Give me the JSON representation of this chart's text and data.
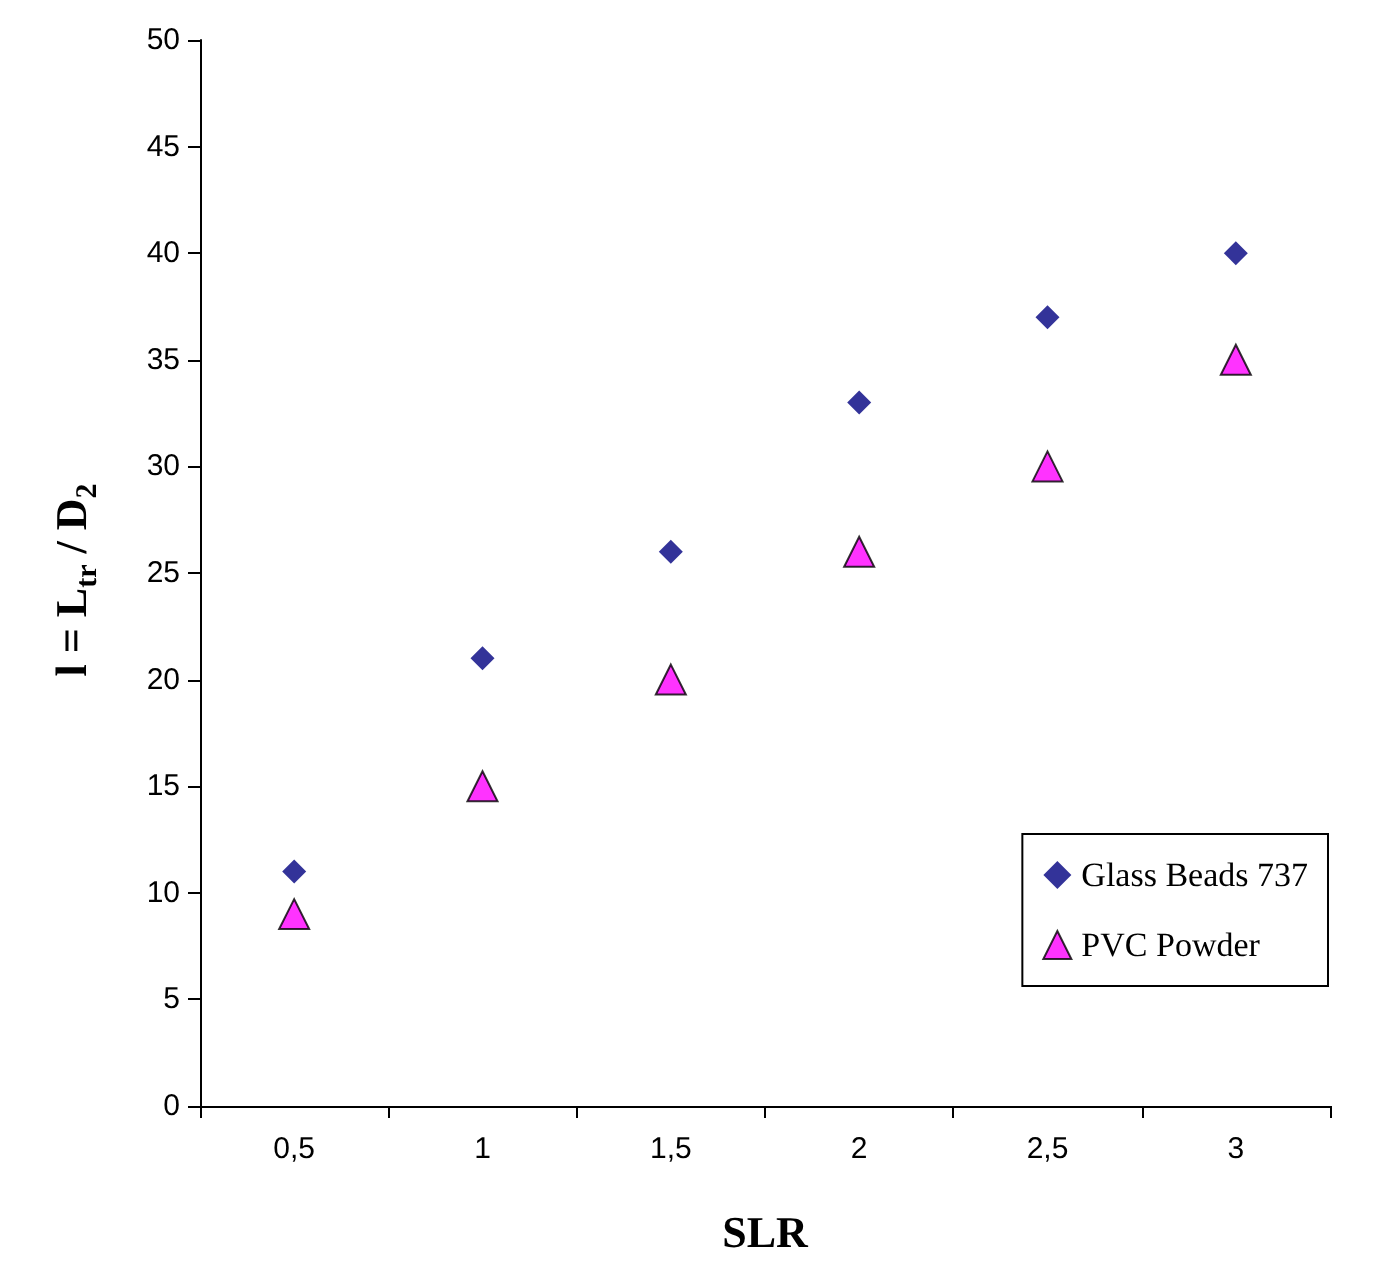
{
  "chart_data": {
    "type": "scatter",
    "xlabel": "SLR",
    "ylabel": "l = L$_{tr}$ / D$_{2}$",
    "categories": [
      "0,5",
      "1",
      "1,5",
      "2",
      "2,5",
      "3"
    ],
    "series": [
      {
        "name": "Glass Beads 737",
        "color": "#000080",
        "marker": "diamond",
        "values": [
          11,
          21,
          26,
          33,
          37,
          40
        ]
      },
      {
        "name": "PVC Powder",
        "color": "#ff00ff",
        "marker": "triangle",
        "values": [
          9,
          15,
          20,
          26,
          30,
          35
        ]
      }
    ],
    "ylim": [
      0,
      50
    ],
    "yticks": [
      0,
      5,
      10,
      15,
      20,
      25,
      30,
      35,
      40,
      45,
      50
    ],
    "grid": false,
    "legend": "bottom right"
  }
}
